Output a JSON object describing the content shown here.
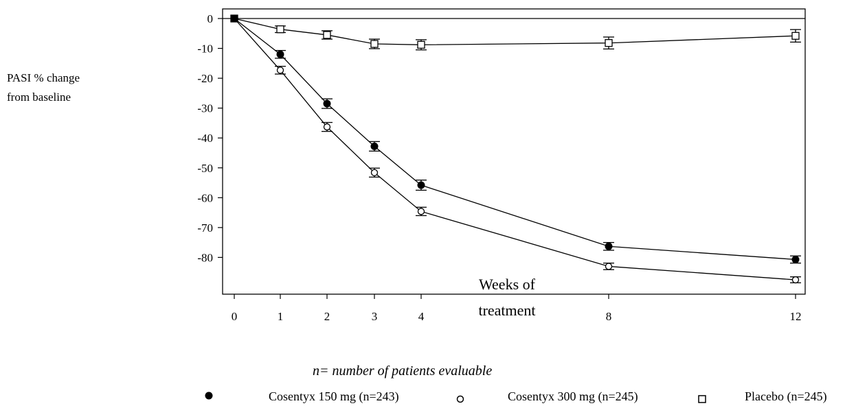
{
  "chart_data": {
    "type": "line",
    "ylabel": [
      "PASI % change",
      "from baseline"
    ],
    "xlabel": [
      "Weeks of",
      "treatment"
    ],
    "note": "n= number of patients evaluable",
    "x": [
      0,
      1,
      2,
      3,
      4,
      8,
      12
    ],
    "xticks": [
      "0",
      "1",
      "2",
      "3",
      "4",
      "8",
      "12"
    ],
    "yticks": [
      "0",
      "-10",
      "-20",
      "-30",
      "-40",
      "-50",
      "-60",
      "-70",
      "-80"
    ],
    "ylim": [
      -92,
      3
    ],
    "series": [
      {
        "name": "Cosentyx 150 mg (n=243)",
        "marker": "filled-circle",
        "values": [
          0,
          -12,
          -28.5,
          -42.8,
          -55.8,
          -76.3,
          -80.7
        ],
        "err": [
          0,
          1.3,
          1.6,
          1.6,
          1.7,
          1.3,
          1.2
        ]
      },
      {
        "name": "Cosentyx 300 mg (n=245)",
        "marker": "open-circle",
        "values": [
          0,
          -17.3,
          -36.3,
          -51.6,
          -64.6,
          -83,
          -87.5
        ],
        "err": [
          0,
          1.3,
          1.5,
          1.5,
          1.4,
          1.1,
          1.0
        ]
      },
      {
        "name": "Placebo (n=245)",
        "marker": "open-square",
        "values": [
          0,
          -3.6,
          -5.5,
          -8.5,
          -8.8,
          -8.2,
          -5.8
        ],
        "err": [
          0,
          1.1,
          1.4,
          1.6,
          1.7,
          2.0,
          2.1
        ]
      }
    ],
    "grid": false,
    "legend_position": "bottom"
  }
}
